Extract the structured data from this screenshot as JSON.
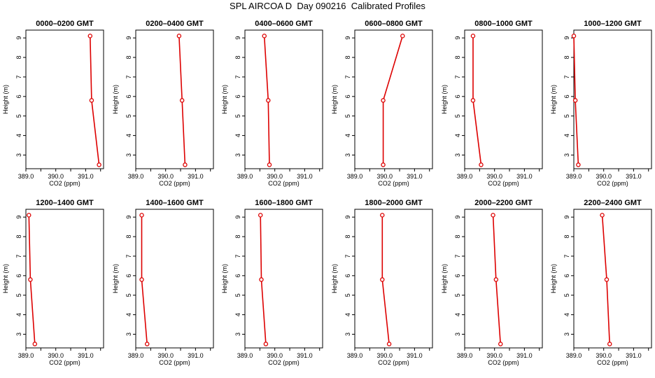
{
  "figure_title": "SPL AIRCOA D  Day 090216  Calibrated Profiles",
  "colors": {
    "series": "#dd0000",
    "axis": "#000000",
    "background": "#ffffff"
  },
  "chart_data": [
    {
      "type": "line",
      "title": "0000–0200 GMT",
      "xlabel": "CO2 (ppm)",
      "ylabel": "Height (m)",
      "xlim": [
        389.0,
        391.6
      ],
      "ylim": [
        2.3,
        9.4
      ],
      "xticks": [
        "389.0",
        "390.0",
        "391.0"
      ],
      "yticks": [
        "3",
        "4",
        "5",
        "6",
        "7",
        "8",
        "9"
      ],
      "x": [
        391.15,
        391.2,
        391.45
      ],
      "y": [
        9.1,
        5.8,
        2.5
      ]
    },
    {
      "type": "line",
      "title": "0200–0400 GMT",
      "xlabel": "CO2 (ppm)",
      "ylabel": "Height (m)",
      "xlim": [
        389.0,
        391.6
      ],
      "ylim": [
        2.3,
        9.4
      ],
      "xticks": [
        "389.0",
        "390.0",
        "391.0"
      ],
      "yticks": [
        "3",
        "4",
        "5",
        "6",
        "7",
        "8",
        "9"
      ],
      "x": [
        390.45,
        390.55,
        390.65
      ],
      "y": [
        9.1,
        5.8,
        2.5
      ]
    },
    {
      "type": "line",
      "title": "0400–0600 GMT",
      "xlabel": "CO2 (ppm)",
      "ylabel": "Height (m)",
      "xlim": [
        389.0,
        391.6
      ],
      "ylim": [
        2.3,
        9.4
      ],
      "xticks": [
        "389.0",
        "390.0",
        "391.0"
      ],
      "yticks": [
        "3",
        "4",
        "5",
        "6",
        "7",
        "8",
        "9"
      ],
      "x": [
        389.65,
        389.78,
        389.82
      ],
      "y": [
        9.1,
        5.8,
        2.5
      ]
    },
    {
      "type": "line",
      "title": "0600–0800 GMT",
      "xlabel": "CO2 (ppm)",
      "ylabel": "Height (m)",
      "xlim": [
        389.0,
        391.6
      ],
      "ylim": [
        2.3,
        9.4
      ],
      "xticks": [
        "389.0",
        "390.0",
        "391.0"
      ],
      "yticks": [
        "3",
        "4",
        "5",
        "6",
        "7",
        "8",
        "9"
      ],
      "x": [
        390.6,
        389.95,
        389.95
      ],
      "y": [
        9.1,
        5.8,
        2.5
      ]
    },
    {
      "type": "line",
      "title": "0800–1000 GMT",
      "xlabel": "CO2 (ppm)",
      "ylabel": "Height (m)",
      "xlim": [
        389.0,
        391.6
      ],
      "ylim": [
        2.3,
        9.4
      ],
      "xticks": [
        "389.0",
        "390.0",
        "391.0"
      ],
      "yticks": [
        "3",
        "4",
        "5",
        "6",
        "7",
        "8",
        "9"
      ],
      "x": [
        389.28,
        389.28,
        389.55
      ],
      "y": [
        9.1,
        5.8,
        2.5
      ]
    },
    {
      "type": "line",
      "title": "1000–1200 GMT",
      "xlabel": "CO2 (ppm)",
      "ylabel": "Height (m)",
      "xlim": [
        389.0,
        391.6
      ],
      "ylim": [
        2.3,
        9.4
      ],
      "xticks": [
        "389.0",
        "390.0",
        "391.0"
      ],
      "yticks": [
        "3",
        "4",
        "5",
        "6",
        "7",
        "8",
        "9"
      ],
      "x": [
        389.0,
        389.05,
        389.15
      ],
      "y": [
        9.1,
        5.8,
        2.5
      ]
    },
    {
      "type": "line",
      "title": "1200–1400 GMT",
      "xlabel": "CO2 (ppm)",
      "ylabel": "Height (m)",
      "xlim": [
        389.0,
        391.6
      ],
      "ylim": [
        2.3,
        9.4
      ],
      "xticks": [
        "389.0",
        "390.0",
        "391.0"
      ],
      "yticks": [
        "3",
        "4",
        "5",
        "6",
        "7",
        "8",
        "9"
      ],
      "x": [
        389.1,
        389.15,
        389.3
      ],
      "y": [
        9.1,
        5.8,
        2.5
      ]
    },
    {
      "type": "line",
      "title": "1400–1600 GMT",
      "xlabel": "CO2 (ppm)",
      "ylabel": "Height (m)",
      "xlim": [
        389.0,
        391.6
      ],
      "ylim": [
        2.3,
        9.4
      ],
      "xticks": [
        "389.0",
        "390.0",
        "391.0"
      ],
      "yticks": [
        "3",
        "4",
        "5",
        "6",
        "7",
        "8",
        "9"
      ],
      "x": [
        389.2,
        389.2,
        389.38
      ],
      "y": [
        9.1,
        5.8,
        2.5
      ]
    },
    {
      "type": "line",
      "title": "1600–1800 GMT",
      "xlabel": "CO2 (ppm)",
      "ylabel": "Height (m)",
      "xlim": [
        389.0,
        391.6
      ],
      "ylim": [
        2.3,
        9.4
      ],
      "xticks": [
        "389.0",
        "390.0",
        "391.0"
      ],
      "yticks": [
        "3",
        "4",
        "5",
        "6",
        "7",
        "8",
        "9"
      ],
      "x": [
        389.52,
        389.55,
        389.7
      ],
      "y": [
        9.1,
        5.8,
        2.5
      ]
    },
    {
      "type": "line",
      "title": "1800–2000 GMT",
      "xlabel": "CO2 (ppm)",
      "ylabel": "Height (m)",
      "xlim": [
        389.0,
        391.6
      ],
      "ylim": [
        2.3,
        9.4
      ],
      "xticks": [
        "389.0",
        "390.0",
        "391.0"
      ],
      "yticks": [
        "3",
        "4",
        "5",
        "6",
        "7",
        "8",
        "9"
      ],
      "x": [
        389.92,
        389.92,
        390.15
      ],
      "y": [
        9.1,
        5.8,
        2.5
      ]
    },
    {
      "type": "line",
      "title": "2000–2200 GMT",
      "xlabel": "CO2 (ppm)",
      "ylabel": "Height (m)",
      "xlim": [
        389.0,
        391.6
      ],
      "ylim": [
        2.3,
        9.4
      ],
      "xticks": [
        "389.0",
        "390.0",
        "391.0"
      ],
      "yticks": [
        "3",
        "4",
        "5",
        "6",
        "7",
        "8",
        "9"
      ],
      "x": [
        389.95,
        390.05,
        390.2
      ],
      "y": [
        9.1,
        5.8,
        2.5
      ]
    },
    {
      "type": "line",
      "title": "2200–2400 GMT",
      "xlabel": "CO2 (ppm)",
      "ylabel": "Height (m)",
      "xlim": [
        389.0,
        391.6
      ],
      "ylim": [
        2.3,
        9.4
      ],
      "xticks": [
        "389.0",
        "390.0",
        "391.0"
      ],
      "yticks": [
        "3",
        "4",
        "5",
        "6",
        "7",
        "8",
        "9"
      ],
      "x": [
        389.95,
        390.1,
        390.2
      ],
      "y": [
        9.1,
        5.8,
        2.5
      ]
    }
  ]
}
